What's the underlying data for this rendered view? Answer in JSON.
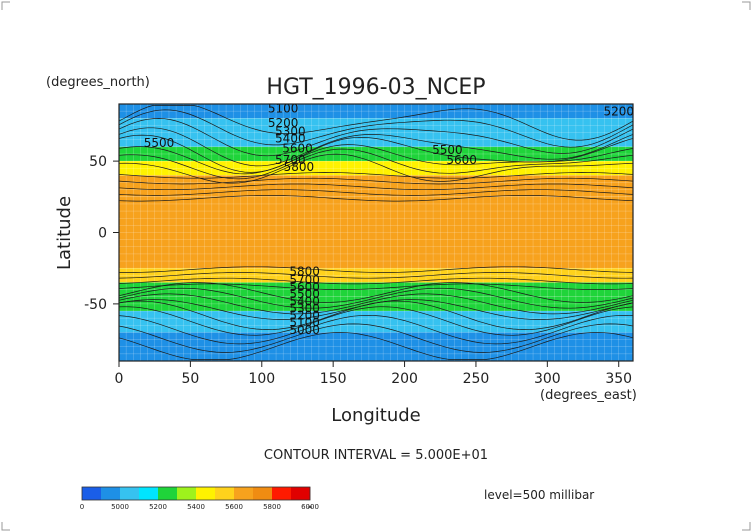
{
  "chart_data": {
    "type": "heatmap",
    "title": "HGT_1996-03_NCEP",
    "xlabel": "Longitude",
    "ylabel": "Latitude",
    "x_units": "(degrees_east)",
    "y_units": "(degrees_north)",
    "xlim": [
      0,
      360
    ],
    "ylim": [
      -90,
      90
    ],
    "x_ticks": [
      "0",
      "50",
      "100",
      "150",
      "200",
      "250",
      "300",
      "350"
    ],
    "y_ticks": [
      "50",
      "0",
      "-50"
    ],
    "contour_interval_text": "CONTOUR INTERVAL = 5.000E+01",
    "level_text": "level=500 millibar",
    "contour_labels": [
      "5100",
      "5200",
      "5300",
      "5400",
      "5500",
      "5600",
      "5700",
      "5800",
      "5500",
      "5600",
      "5200",
      "5800",
      "5700",
      "5600",
      "5500",
      "5400",
      "5300",
      "5200",
      "5100",
      "5000"
    ],
    "colorbar": {
      "labels": [
        "0",
        "5000",
        "5200",
        "5400",
        "5600",
        "5800",
        "6000",
        "∞"
      ],
      "colors": [
        "#1a5ee8",
        "#1e90e6",
        "#36c2f0",
        "#00e5ff",
        "#1fd43a",
        "#9ef21c",
        "#fff200",
        "#ffd21c",
        "#f7a21d",
        "#f08c12",
        "#ff1a00",
        "#e00000"
      ]
    },
    "latitude_bands": [
      {
        "from": 90,
        "to": 80,
        "value": 5150
      },
      {
        "from": 80,
        "to": 60,
        "value": 5250
      },
      {
        "from": 60,
        "to": 50,
        "value": 5500
      },
      {
        "from": 50,
        "to": 40,
        "value": 5650
      },
      {
        "from": 40,
        "to": 25,
        "value": 5800
      },
      {
        "from": 25,
        "to": -25,
        "value": 5870
      },
      {
        "from": -25,
        "to": -35,
        "value": 5750
      },
      {
        "from": -35,
        "to": -45,
        "value": 5550
      },
      {
        "from": -45,
        "to": -55,
        "value": 5400
      },
      {
        "from": -55,
        "to": -70,
        "value": 5200
      },
      {
        "from": -70,
        "to": -90,
        "value": 5050
      }
    ],
    "grid": true
  }
}
